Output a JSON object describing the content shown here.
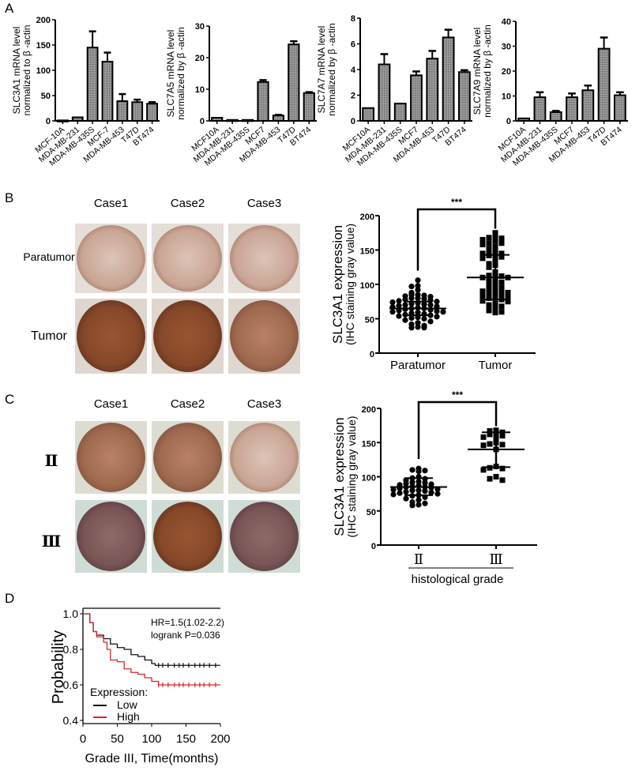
{
  "panels": {
    "A": "A",
    "B": "B",
    "C": "C",
    "D": "D"
  },
  "chart_data": [
    {
      "id": "A1",
      "type": "bar",
      "ylabel": [
        "SLC3A1 mRNA level",
        "normalized to β -actin"
      ],
      "ylim": [
        0,
        200
      ],
      "yticks": [
        0,
        50,
        100,
        150,
        200
      ],
      "categories": [
        "MCF-10A",
        "MDA-MB-231",
        "MDA-MB-435S",
        "MCF-7",
        "MDA-MB-453",
        "T47D",
        "BT474"
      ],
      "values": [
        1,
        7,
        145,
        117,
        39,
        37,
        34
      ],
      "error_upper": [
        1,
        7,
        177,
        135,
        53,
        42,
        37
      ]
    },
    {
      "id": "A2",
      "type": "bar",
      "ylabel": [
        "SLC7A5 mRNA level",
        "normalized by β -actin"
      ],
      "ylim": [
        0,
        30
      ],
      "yticks": [
        0,
        10,
        20,
        30
      ],
      "categories": [
        "MCF10A",
        "MDA-MB-231",
        "MDA-MB-435S",
        "MCF7",
        "MDA-MB-453",
        "T47D",
        "BT474"
      ],
      "values": [
        1,
        0.3,
        0.3,
        12.3,
        1.7,
        24.2,
        8.8
      ],
      "error_upper": [
        1,
        0.3,
        0.3,
        12.9,
        1.9,
        25.2,
        9.1
      ]
    },
    {
      "id": "A3",
      "type": "bar",
      "ylabel": [
        "SLC7A7 mRNA level",
        "normalized by β -actin"
      ],
      "ylim": [
        0,
        8
      ],
      "yticks": [
        0,
        2,
        4,
        6,
        8
      ],
      "categories": [
        "MCF10A",
        "MDA-MB-231",
        "MDA-MB-435S",
        "MCF7",
        "MDA-MB-453",
        "T47D",
        "BT474"
      ],
      "values": [
        1,
        4.4,
        1.35,
        3.55,
        4.85,
        6.5,
        3.8
      ],
      "error_upper": [
        1,
        5.2,
        1.35,
        3.85,
        5.45,
        7.1,
        3.95
      ]
    },
    {
      "id": "A4",
      "type": "bar",
      "ylabel": [
        "SLC7A9 mRNA level",
        "normalized by β -actin"
      ],
      "ylim": [
        0,
        40
      ],
      "yticks": [
        0,
        10,
        20,
        30,
        40
      ],
      "categories": [
        "MCF10A",
        "MDA-MB-231",
        "MDA-MB-435S",
        "MCF7",
        "MDA-MB-453",
        "T47D",
        "BT474"
      ],
      "values": [
        1,
        9.5,
        3.5,
        9.5,
        12.3,
        29,
        10.3
      ],
      "error_upper": [
        1,
        11.5,
        4,
        11,
        14.2,
        33.5,
        11.5
      ]
    },
    {
      "id": "B",
      "type": "scatter",
      "ylabel": [
        "SLC3A1 expression",
        "(IHC staining gray value)"
      ],
      "ylim": [
        0,
        200
      ],
      "yticks": [
        0,
        50,
        100,
        150,
        200
      ],
      "significance": "***",
      "xlabel": "",
      "groups": [
        {
          "label": "Paratumor",
          "marker": "circle",
          "mean": 65,
          "sd_range": [
            55,
            75
          ],
          "values": [
            106,
            98,
            97,
            92,
            88,
            85,
            85,
            84,
            83,
            82,
            80,
            80,
            79,
            78,
            77,
            76,
            75,
            74,
            73,
            72,
            71,
            70,
            70,
            69,
            68,
            67,
            66,
            65,
            65,
            64,
            63,
            62,
            61,
            60,
            60,
            59,
            58,
            57,
            56,
            55,
            54,
            53,
            52,
            51,
            50,
            48,
            46,
            44,
            42,
            40,
            38,
            37,
            37
          ]
        },
        {
          "label": "Tumor",
          "marker": "square",
          "mean": 110,
          "sd_range": [
            78,
            143
          ],
          "values": [
            175,
            170,
            168,
            167,
            165,
            163,
            160,
            160,
            158,
            155,
            152,
            150,
            148,
            145,
            145,
            143,
            142,
            140,
            138,
            135,
            130,
            128,
            125,
            118,
            115,
            113,
            112,
            110,
            110,
            108,
            105,
            103,
            100,
            98,
            95,
            93,
            92,
            90,
            90,
            88,
            87,
            85,
            85,
            83,
            82,
            80,
            80,
            78,
            76,
            75,
            72,
            70,
            68,
            65,
            62,
            60,
            59
          ]
        }
      ]
    },
    {
      "id": "C",
      "type": "scatter",
      "ylabel": [
        "SLC3A1 expression",
        "(IHC staining gray value)"
      ],
      "ylim": [
        0,
        200
      ],
      "yticks": [
        0,
        50,
        100,
        150,
        200
      ],
      "significance": "***",
      "xlabel": "histological grade",
      "groups": [
        {
          "label": "Ⅱ",
          "marker": "circle",
          "mean": 85,
          "sd_range": [
            73,
            98
          ],
          "values": [
            112,
            110,
            109,
            108,
            100,
            98,
            97,
            95,
            93,
            92,
            91,
            90,
            89,
            88,
            87,
            86,
            85,
            85,
            84,
            83,
            82,
            81,
            80,
            80,
            79,
            78,
            77,
            76,
            75,
            74,
            73,
            72,
            70,
            68,
            66,
            63,
            61,
            59,
            58
          ]
        },
        {
          "label": "Ⅲ",
          "marker": "square",
          "mean": 140,
          "sd_range": [
            114,
            165
          ],
          "values": [
            168,
            167,
            165,
            163,
            162,
            160,
            158,
            155,
            150,
            148,
            147,
            146,
            140,
            115,
            113,
            112,
            110,
            100,
            97,
            95
          ]
        }
      ]
    },
    {
      "id": "D",
      "type": "line",
      "title": "",
      "ylabel": "Probability",
      "xlabel": "Grade III, Time(months)",
      "xlim": [
        0,
        200
      ],
      "ylim": [
        0.4,
        1.0
      ],
      "xticks": [
        0,
        50,
        100,
        150,
        200
      ],
      "yticks": [
        "0.4",
        "0.6",
        "0.8",
        "1.0"
      ],
      "annotations": [
        "HR=1.5(1.02-2.2)",
        "logrank P=0.036"
      ],
      "legend_title": "Expression:",
      "series": [
        {
          "name": "Low",
          "color": "#111111",
          "points": [
            [
              0,
              1
            ],
            [
              10,
              0.95
            ],
            [
              15,
              0.9
            ],
            [
              20,
              0.88
            ],
            [
              30,
              0.86
            ],
            [
              40,
              0.83
            ],
            [
              50,
              0.81
            ],
            [
              60,
              0.8
            ],
            [
              70,
              0.77
            ],
            [
              80,
              0.76
            ],
            [
              90,
              0.74
            ],
            [
              100,
              0.72
            ],
            [
              105,
              0.71
            ],
            [
              200,
              0.71
            ]
          ]
        },
        {
          "name": "High",
          "color": "#d62728",
          "points": [
            [
              0,
              1
            ],
            [
              10,
              0.95
            ],
            [
              15,
              0.9
            ],
            [
              20,
              0.87
            ],
            [
              30,
              0.84
            ],
            [
              35,
              0.8
            ],
            [
              40,
              0.74
            ],
            [
              50,
              0.73
            ],
            [
              60,
              0.69
            ],
            [
              70,
              0.67
            ],
            [
              80,
              0.66
            ],
            [
              90,
              0.64
            ],
            [
              100,
              0.62
            ],
            [
              110,
              0.6
            ],
            [
              200,
              0.6
            ]
          ]
        }
      ]
    }
  ],
  "ihc": {
    "B": {
      "columns": [
        "Case1",
        "Case2",
        "Case3"
      ],
      "rows": [
        "Paratumor",
        "Tumor"
      ]
    },
    "C": {
      "columns": [
        "Case1",
        "Case2",
        "Case3"
      ],
      "rows": [
        "Ⅱ",
        "Ⅲ"
      ]
    }
  },
  "colors": {
    "bar_fill": "#8a8a8a",
    "stain_light": "#d9bfb3",
    "stain_dark": "#8a4a2a",
    "km_low": "#111111",
    "km_high": "#d62728"
  }
}
